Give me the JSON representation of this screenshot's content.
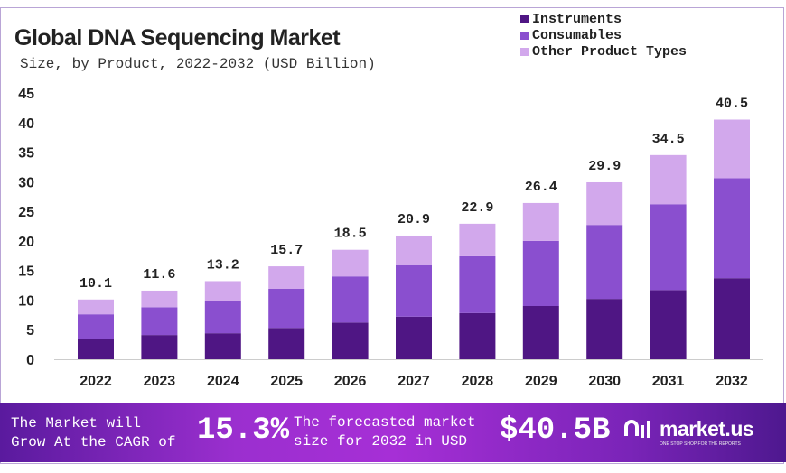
{
  "chart_data": {
    "type": "bar",
    "stacked": true,
    "title": "Global DNA Sequencing Market",
    "subtitle": "Size, by Product, 2022-2032 (USD Billion)",
    "xlabel": "",
    "ylabel": "",
    "ylim": [
      0,
      45
    ],
    "yticks": [
      0,
      5,
      10,
      15,
      20,
      25,
      30,
      35,
      40,
      45
    ],
    "grid": false,
    "legend_position": "top-right",
    "categories": [
      "2022",
      "2023",
      "2024",
      "2025",
      "2026",
      "2027",
      "2028",
      "2029",
      "2030",
      "2031",
      "2032"
    ],
    "series": [
      {
        "name": "Instruments",
        "color": "#4f1684",
        "values": [
          3.5,
          4.1,
          4.4,
          5.3,
          6.2,
          7.2,
          7.8,
          9.0,
          10.2,
          11.7,
          13.7
        ]
      },
      {
        "name": "Consumables",
        "color": "#8a4fcf",
        "values": [
          4.1,
          4.7,
          5.5,
          6.6,
          7.8,
          8.7,
          9.6,
          11.0,
          12.5,
          14.5,
          16.9
        ]
      },
      {
        "name": "Other Product Types",
        "color": "#d2a8ec",
        "values": [
          2.5,
          2.8,
          3.3,
          3.8,
          4.5,
          5.0,
          5.5,
          6.4,
          7.2,
          8.3,
          9.9
        ]
      }
    ],
    "totals": [
      "10.1",
      "11.6",
      "13.2",
      "15.7",
      "18.5",
      "20.9",
      "22.9",
      "26.4",
      "29.9",
      "34.5",
      "40.5"
    ]
  },
  "footer": {
    "cagr_text_line1": "The Market will",
    "cagr_text_line2": "Grow At the CAGR of",
    "cagr_value": "15.3%",
    "forecast_text_line1": "The forecasted market",
    "forecast_text_line2": "size for 2032 in USD",
    "forecast_value": "$40.5B",
    "brand": "market.us",
    "brand_tagline": "ONE STOP SHOP FOR THE REPORTS"
  }
}
